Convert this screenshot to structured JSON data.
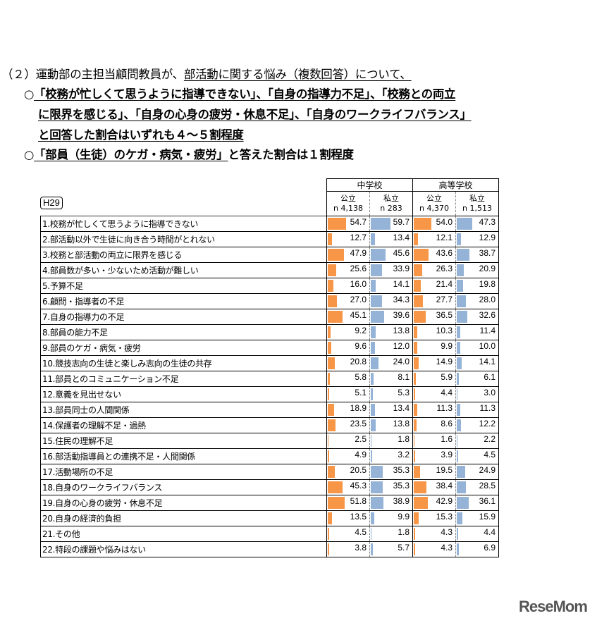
{
  "heading": {
    "line1_prefix": "（２）運動部の主担当顧問教員が、",
    "line1_underlined": "部活動に関する悩み（複数回答）について、",
    "bullet": "○",
    "line2": "「校務が忙しくて思うように指導できない」、「自身の指導力不足」、「校務との両立",
    "line3": "に限界を感じる」、「自身の心身の疲労・休息不足」、「自身のワークライフバランス」",
    "line4": "と回答した割合はいずれも４～５割程度",
    "line5_underlined": "「部員（生徒）のケガ・病気・疲労」",
    "line5_rest": "と答えた割合は１割程度"
  },
  "badge": "H29",
  "chart_data": {
    "type": "table",
    "groups": [
      "中学校",
      "高等学校"
    ],
    "columns": [
      {
        "label": "公立",
        "n": "n 4,138"
      },
      {
        "label": "私立",
        "n": "n 283"
      },
      {
        "label": "公立",
        "n": "n 4,370"
      },
      {
        "label": "私立",
        "n": "n 1,513"
      }
    ],
    "colors": [
      "#F79646",
      "#95B3D7",
      "#F79646",
      "#95B3D7"
    ],
    "rows": [
      {
        "label": "1.校務が忙しくて思うように指導できない",
        "values": [
          54.7,
          59.7,
          54.0,
          47.3
        ]
      },
      {
        "label": "2.部活動以外で生徒に向き合う時間がとれない",
        "values": [
          12.7,
          13.4,
          12.1,
          12.9
        ]
      },
      {
        "label": "3.校務と部活動の両立に限界を感じる",
        "values": [
          47.9,
          45.6,
          43.6,
          38.7
        ]
      },
      {
        "label": "4.部員数が多い・少ないため活動が難しい",
        "values": [
          25.6,
          33.9,
          26.3,
          20.9
        ]
      },
      {
        "label": "5.予算不足",
        "values": [
          16.0,
          14.1,
          21.4,
          19.8
        ]
      },
      {
        "label": "6.顧問・指導者の不足",
        "values": [
          27.0,
          34.3,
          27.7,
          28.0
        ]
      },
      {
        "label": "7.自身の指導力の不足",
        "values": [
          45.1,
          39.6,
          36.5,
          32.6
        ]
      },
      {
        "label": "8.部員の能力不足",
        "values": [
          9.2,
          13.8,
          10.3,
          11.4
        ]
      },
      {
        "label": "9.部員のケガ・病気・疲労",
        "values": [
          9.6,
          12.0,
          9.9,
          10.0
        ]
      },
      {
        "label": "10.競技志向の生徒と楽しみ志向の生徒の共存",
        "values": [
          20.8,
          24.0,
          14.9,
          14.1
        ]
      },
      {
        "label": "11.部員とのコミュニケーション不足",
        "values": [
          5.8,
          8.1,
          5.9,
          6.1
        ]
      },
      {
        "label": "12.意義を見出せない",
        "values": [
          5.1,
          5.3,
          4.4,
          3.0
        ]
      },
      {
        "label": "13.部員同士の人間関係",
        "values": [
          18.9,
          13.4,
          11.3,
          11.3
        ]
      },
      {
        "label": "14.保護者の理解不足・過熱",
        "values": [
          23.5,
          13.8,
          8.6,
          12.2
        ]
      },
      {
        "label": "15.住民の理解不足",
        "values": [
          2.5,
          1.8,
          1.6,
          2.2
        ]
      },
      {
        "label": "16.部活動指導員との連携不足・人間関係",
        "values": [
          4.9,
          3.2,
          3.9,
          4.5
        ]
      },
      {
        "label": "17.活動場所の不足",
        "values": [
          20.5,
          35.3,
          19.5,
          24.9
        ]
      },
      {
        "label": "18.自身のワークライフバランス",
        "values": [
          45.3,
          35.3,
          38.4,
          28.5
        ]
      },
      {
        "label": "19.自身の心身の疲労・休息不足",
        "values": [
          51.8,
          38.9,
          42.9,
          36.1
        ]
      },
      {
        "label": "20.自身の経済的負担",
        "values": [
          13.5,
          9.9,
          15.3,
          15.9
        ]
      },
      {
        "label": "21.その他",
        "values": [
          4.5,
          1.8,
          4.3,
          4.4
        ]
      },
      {
        "label": "22.特段の課題や悩みはない",
        "values": [
          3.8,
          5.7,
          4.3,
          6.9
        ]
      }
    ]
  },
  "logo": "ReseMom"
}
